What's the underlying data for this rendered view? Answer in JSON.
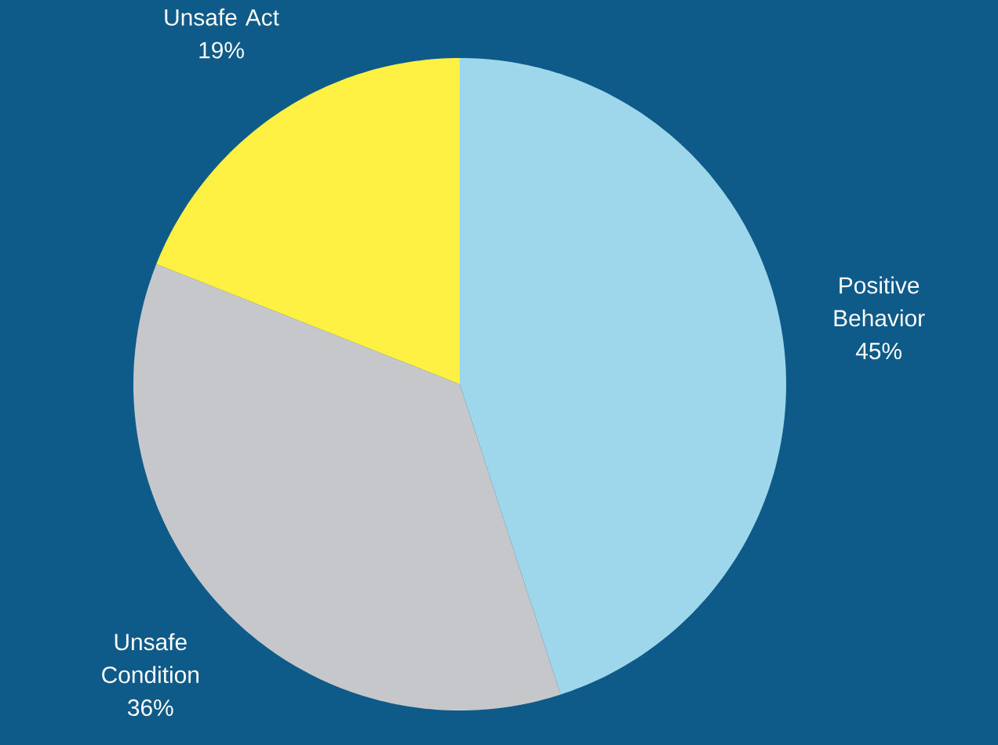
{
  "chart_data": {
    "type": "pie",
    "categories": [
      "Positive Behavior",
      "Unsafe Condition",
      "Unsafe Act"
    ],
    "values": [
      45,
      36,
      19
    ],
    "value_labels": [
      "45%",
      "36%",
      "19%"
    ],
    "colors": [
      "#9ed6eb",
      "#c6c7ca",
      "#fff143"
    ]
  }
}
